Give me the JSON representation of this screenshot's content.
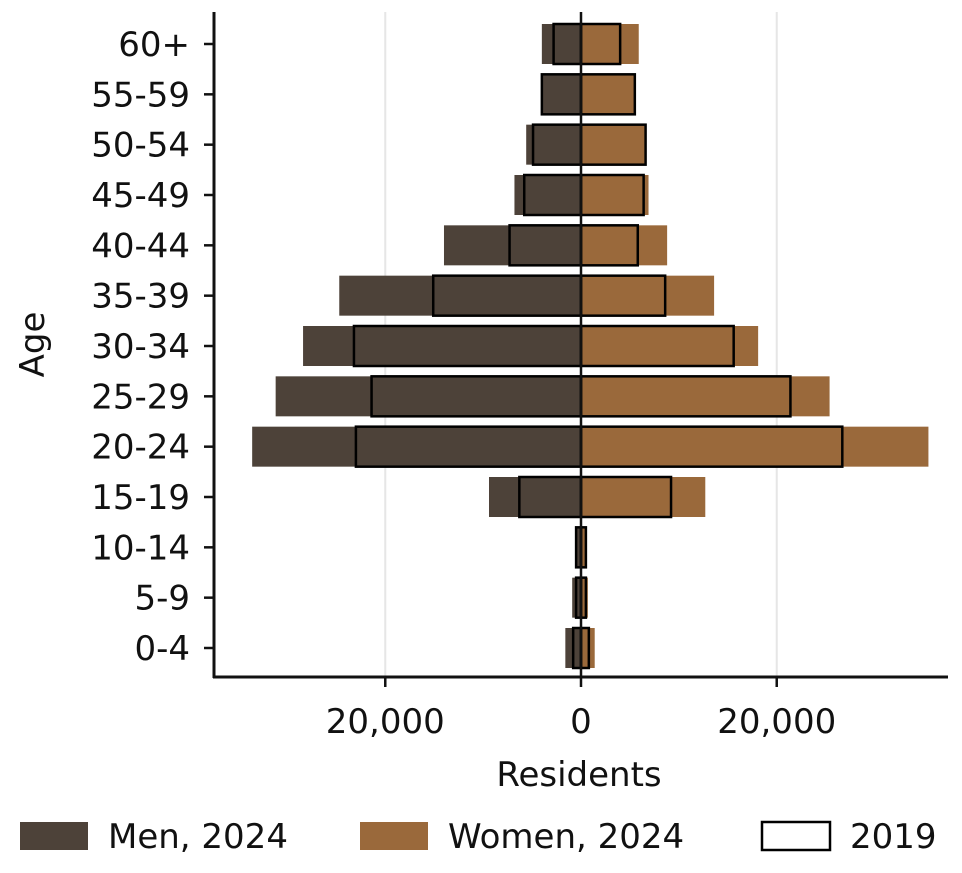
{
  "chart_data": {
    "type": "bar",
    "orientation": "horizontal-population-pyramid",
    "xlabel": "Residents",
    "ylabel": "Age",
    "categories": [
      "0-4",
      "5-9",
      "10-14",
      "15-19",
      "20-24",
      "25-29",
      "30-34",
      "35-39",
      "40-44",
      "45-49",
      "50-54",
      "55-59",
      "60+"
    ],
    "xlim": [
      -37500,
      37500
    ],
    "xticks": [
      {
        "value": -20000,
        "label": "20,000"
      },
      {
        "value": 0,
        "label": "0"
      },
      {
        "value": 20000,
        "label": "20,000"
      }
    ],
    "grid": {
      "x": true,
      "y": false
    },
    "legend_position": "bottom",
    "series": [
      {
        "name": "Men, 2024",
        "color": "#4d4239",
        "side": "left",
        "values": [
          1600,
          900,
          600,
          9400,
          33600,
          31200,
          28400,
          24700,
          14000,
          6800,
          5600,
          4000,
          4000
        ]
      },
      {
        "name": "Women, 2024",
        "color": "#9a693b",
        "side": "right",
        "values": [
          1400,
          700,
          500,
          12700,
          35500,
          25400,
          18100,
          13600,
          8800,
          6900,
          6600,
          5600,
          5900
        ]
      },
      {
        "name": "2019",
        "style": "outline",
        "men": [
          800,
          500,
          500,
          6300,
          23000,
          21400,
          23200,
          15100,
          7300,
          5800,
          4900,
          4000,
          2800
        ],
        "women": [
          800,
          500,
          500,
          9200,
          26700,
          21400,
          15600,
          8600,
          5800,
          6400,
          6600,
          5500,
          4000
        ]
      }
    ]
  }
}
